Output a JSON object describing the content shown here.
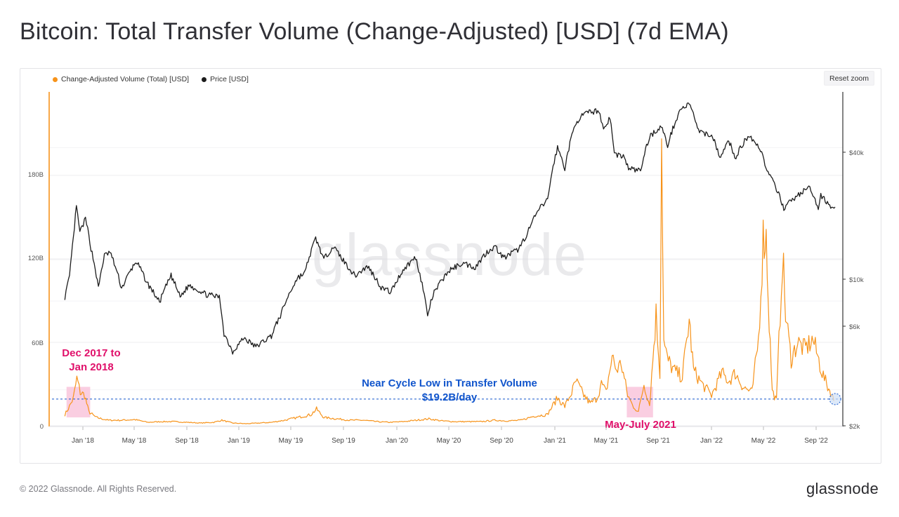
{
  "title": "Bitcoin: Total Transfer Volume (Change-Adjusted) [USD] (7d EMA)",
  "legend": {
    "volume_label": "Change-Adjusted Volume (Total) [USD]",
    "price_label": "Price [USD]"
  },
  "reset_zoom_label": "Reset zoom",
  "watermark": "glassnode",
  "footer": "© 2022 Glassnode. All Rights Reserved.",
  "brand": "glassnode",
  "colors": {
    "volume": "#f7931a",
    "price": "#1c1c1c",
    "annotation_pink": "#e0106a",
    "annotation_blue": "#1155cc",
    "highlight_fill": "#f9c6dc"
  },
  "chart_data": {
    "type": "line",
    "x_ticks": [
      "Jan '18",
      "May '18",
      "Sep '18",
      "Jan '19",
      "May '19",
      "Sep '19",
      "Jan '20",
      "May '20",
      "Sep '20",
      "Jan '21",
      "May '21",
      "Sep '21",
      "Jan '22",
      "May '22",
      "Sep '22"
    ],
    "y_left": {
      "ticks": [
        "0",
        "60B",
        "120B",
        "180B"
      ],
      "min": 0,
      "max": 270
    },
    "y_right": {
      "scale": "log",
      "ticks": [
        "$2k",
        "$6k",
        "$10k",
        "$40k"
      ]
    },
    "grid": true,
    "legend_position": "top-left",
    "series": [
      {
        "name": "Change-Adjusted Volume (Total) [USD]",
        "axis": "left",
        "unit": "billion USD",
        "points": [
          [
            "2017-11-20",
            8
          ],
          [
            "2017-12-01",
            14
          ],
          [
            "2017-12-10",
            20
          ],
          [
            "2017-12-18",
            34
          ],
          [
            "2017-12-26",
            24
          ],
          [
            "2018-01-05",
            22
          ],
          [
            "2018-01-15",
            10
          ],
          [
            "2018-02-01",
            6
          ],
          [
            "2018-03-01",
            4
          ],
          [
            "2018-04-01",
            4
          ],
          [
            "2018-05-01",
            4.5
          ],
          [
            "2018-06-01",
            2.5
          ],
          [
            "2018-07-01",
            3
          ],
          [
            "2018-08-01",
            3
          ],
          [
            "2018-09-01",
            2.5
          ],
          [
            "2018-10-01",
            2
          ],
          [
            "2018-11-01",
            2.5
          ],
          [
            "2018-11-20",
            4
          ],
          [
            "2018-12-15",
            2
          ],
          [
            "2019-01-15",
            1.5
          ],
          [
            "2019-02-15",
            2
          ],
          [
            "2019-03-15",
            2.5
          ],
          [
            "2019-04-15",
            4
          ],
          [
            "2019-05-15",
            6
          ],
          [
            "2019-06-15",
            8
          ],
          [
            "2019-06-28",
            12
          ],
          [
            "2019-07-15",
            6
          ],
          [
            "2019-08-15",
            5
          ],
          [
            "2019-09-15",
            4
          ],
          [
            "2019-10-15",
            4
          ],
          [
            "2019-11-15",
            3
          ],
          [
            "2019-12-15",
            2.5
          ],
          [
            "2020-01-15",
            3
          ],
          [
            "2020-02-15",
            4
          ],
          [
            "2020-03-15",
            5
          ],
          [
            "2020-04-15",
            3.5
          ],
          [
            "2020-05-15",
            3
          ],
          [
            "2020-06-15",
            3
          ],
          [
            "2020-07-15",
            3
          ],
          [
            "2020-08-15",
            4
          ],
          [
            "2020-09-15",
            3.5
          ],
          [
            "2020-10-15",
            4
          ],
          [
            "2020-11-15",
            7
          ],
          [
            "2020-12-15",
            8
          ],
          [
            "2021-01-08",
            20
          ],
          [
            "2021-01-25",
            14
          ],
          [
            "2021-02-10",
            24
          ],
          [
            "2021-02-20",
            32
          ],
          [
            "2021-03-10",
            22
          ],
          [
            "2021-03-25",
            16
          ],
          [
            "2021-04-10",
            20
          ],
          [
            "2021-04-20",
            30
          ],
          [
            "2021-05-01",
            24
          ],
          [
            "2021-05-15",
            50
          ],
          [
            "2021-05-25",
            40
          ],
          [
            "2021-06-05",
            45
          ],
          [
            "2021-06-20",
            22
          ],
          [
            "2021-07-01",
            15
          ],
          [
            "2021-07-15",
            10
          ],
          [
            "2021-07-28",
            30
          ],
          [
            "2021-08-10",
            15
          ],
          [
            "2021-08-25",
            80
          ],
          [
            "2021-09-03",
            38
          ],
          [
            "2021-09-07",
            210
          ],
          [
            "2021-09-12",
            60
          ],
          [
            "2021-09-20",
            48
          ],
          [
            "2021-10-05",
            40
          ],
          [
            "2021-10-25",
            35
          ],
          [
            "2021-11-10",
            76
          ],
          [
            "2021-11-20",
            40
          ],
          [
            "2021-12-10",
            30
          ],
          [
            "2022-01-01",
            22
          ],
          [
            "2022-01-25",
            38
          ],
          [
            "2022-02-10",
            32
          ],
          [
            "2022-02-25",
            38
          ],
          [
            "2022-03-15",
            28
          ],
          [
            "2022-04-05",
            24
          ],
          [
            "2022-04-20",
            62
          ],
          [
            "2022-05-01",
            135
          ],
          [
            "2022-05-08",
            135
          ],
          [
            "2022-05-15",
            75
          ],
          [
            "2022-05-22",
            25
          ],
          [
            "2022-06-01",
            18
          ],
          [
            "2022-06-15",
            124
          ],
          [
            "2022-06-22",
            80
          ],
          [
            "2022-07-05",
            48
          ],
          [
            "2022-07-20",
            60
          ],
          [
            "2022-08-05",
            55
          ],
          [
            "2022-08-25",
            62
          ],
          [
            "2022-09-15",
            38
          ],
          [
            "2022-09-28",
            28
          ],
          [
            "2022-10-05",
            24
          ],
          [
            "2022-10-12",
            18
          ]
        ]
      },
      {
        "name": "Price [USD]",
        "axis": "right",
        "unit": "USD",
        "points": [
          [
            "2017-11-20",
            6300
          ],
          [
            "2017-12-01",
            8000
          ],
          [
            "2017-12-10",
            13000
          ],
          [
            "2017-12-17",
            19200
          ],
          [
            "2017-12-25",
            14000
          ],
          [
            "2018-01-07",
            16500
          ],
          [
            "2018-01-20",
            11500
          ],
          [
            "2018-02-06",
            7000
          ],
          [
            "2018-02-20",
            10500
          ],
          [
            "2018-03-05",
            11000
          ],
          [
            "2018-04-01",
            7000
          ],
          [
            "2018-05-05",
            9800
          ],
          [
            "2018-05-30",
            7500
          ],
          [
            "2018-06-28",
            5900
          ],
          [
            "2018-07-25",
            8200
          ],
          [
            "2018-08-15",
            6300
          ],
          [
            "2018-09-05",
            7300
          ],
          [
            "2018-10-15",
            6500
          ],
          [
            "2018-11-14",
            6300
          ],
          [
            "2018-11-25",
            4000
          ],
          [
            "2018-12-15",
            3200
          ],
          [
            "2019-01-10",
            3800
          ],
          [
            "2019-02-07",
            3400
          ],
          [
            "2019-03-15",
            3900
          ],
          [
            "2019-04-05",
            5000
          ],
          [
            "2019-05-15",
            8000
          ],
          [
            "2019-06-01",
            8500
          ],
          [
            "2019-06-26",
            13000
          ],
          [
            "2019-07-15",
            10000
          ],
          [
            "2019-08-05",
            11800
          ],
          [
            "2019-09-01",
            9700
          ],
          [
            "2019-09-25",
            8200
          ],
          [
            "2019-10-25",
            9200
          ],
          [
            "2019-11-25",
            7100
          ],
          [
            "2019-12-18",
            6700
          ],
          [
            "2020-01-15",
            8800
          ],
          [
            "2020-02-13",
            10300
          ],
          [
            "2020-03-12",
            5000
          ],
          [
            "2020-03-25",
            6500
          ],
          [
            "2020-04-30",
            8700
          ],
          [
            "2020-06-01",
            9600
          ],
          [
            "2020-07-01",
            9100
          ],
          [
            "2020-07-28",
            11000
          ],
          [
            "2020-08-15",
            11800
          ],
          [
            "2020-09-05",
            10200
          ],
          [
            "2020-10-10",
            11400
          ],
          [
            "2020-10-28",
            13600
          ],
          [
            "2020-11-25",
            18500
          ],
          [
            "2020-12-16",
            21000
          ],
          [
            "2021-01-08",
            40000
          ],
          [
            "2021-01-25",
            31000
          ],
          [
            "2021-02-20",
            55000
          ],
          [
            "2021-03-13",
            61000
          ],
          [
            "2021-04-14",
            63500
          ],
          [
            "2021-04-25",
            50000
          ],
          [
            "2021-05-10",
            58000
          ],
          [
            "2021-05-20",
            37000
          ],
          [
            "2021-06-10",
            36000
          ],
          [
            "2021-06-22",
            31000
          ],
          [
            "2021-07-20",
            30000
          ],
          [
            "2021-08-10",
            46000
          ],
          [
            "2021-09-06",
            52000
          ],
          [
            "2021-09-21",
            41000
          ],
          [
            "2021-10-20",
            64000
          ],
          [
            "2021-11-10",
            68500
          ],
          [
            "2021-12-04",
            48000
          ],
          [
            "2022-01-01",
            47000
          ],
          [
            "2022-01-22",
            35000
          ],
          [
            "2022-02-10",
            44000
          ],
          [
            "2022-02-24",
            35000
          ],
          [
            "2022-03-29",
            47000
          ],
          [
            "2022-04-25",
            39000
          ],
          [
            "2022-05-10",
            30000
          ],
          [
            "2022-06-18",
            19000
          ],
          [
            "2022-07-08",
            21000
          ],
          [
            "2022-08-15",
            24500
          ],
          [
            "2022-09-06",
            19000
          ],
          [
            "2022-09-12",
            22000
          ],
          [
            "2022-10-05",
            19500
          ],
          [
            "2022-10-15",
            19200
          ]
        ]
      }
    ],
    "annotations": [
      {
        "text": "Dec 2017 to Jan 2018",
        "color": "pink",
        "shaded_range": [
          "2017-11-24",
          "2018-01-18"
        ]
      },
      {
        "text": "Near Cycle Low in Transfer Volume $19.2B/day",
        "color": "blue",
        "reference_line": 19.2
      },
      {
        "text": "May-July 2021",
        "color": "pink",
        "shaded_range": [
          "2021-06-18",
          "2021-08-18"
        ]
      }
    ]
  }
}
